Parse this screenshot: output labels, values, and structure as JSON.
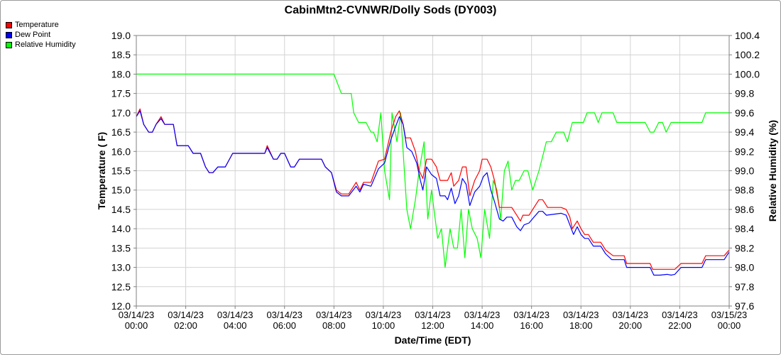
{
  "chart_data": {
    "type": "line",
    "title": "CabinMtn2-CVNWR/Dolly Sods (DY003)",
    "xlabel": "Date/Time (EDT)",
    "ylabel_left": "Temperature ( F)",
    "ylabel_right": "Relative Humidity (%)",
    "x_range_hours": [
      0,
      24
    ],
    "x_ticks": [
      {
        "hour": 0,
        "date": "03/14/23",
        "time": "00:00"
      },
      {
        "hour": 2,
        "date": "03/14/23",
        "time": "02:00"
      },
      {
        "hour": 4,
        "date": "03/14/23",
        "time": "04:00"
      },
      {
        "hour": 6,
        "date": "03/14/23",
        "time": "06:00"
      },
      {
        "hour": 8,
        "date": "03/14/23",
        "time": "08:00"
      },
      {
        "hour": 10,
        "date": "03/14/23",
        "time": "10:00"
      },
      {
        "hour": 12,
        "date": "03/14/23",
        "time": "12:00"
      },
      {
        "hour": 14,
        "date": "03/14/23",
        "time": "14:00"
      },
      {
        "hour": 16,
        "date": "03/14/23",
        "time": "16:00"
      },
      {
        "hour": 18,
        "date": "03/14/23",
        "time": "18:00"
      },
      {
        "hour": 20,
        "date": "03/14/23",
        "time": "20:00"
      },
      {
        "hour": 22,
        "date": "03/14/23",
        "time": "22:00"
      },
      {
        "hour": 24,
        "date": "03/15/23",
        "time": "00:00"
      }
    ],
    "ylim_left": [
      12.0,
      19.0
    ],
    "ylim_right": [
      97.6,
      100.4
    ],
    "y_ticks_left": [
      "12.0",
      "12.5",
      "13.0",
      "13.5",
      "14.0",
      "14.5",
      "15.0",
      "15.5",
      "16.0",
      "16.5",
      "17.0",
      "17.5",
      "18.0",
      "18.5",
      "19.0"
    ],
    "y_ticks_right": [
      "97.6",
      "97.8",
      "98.0",
      "98.2",
      "98.4",
      "98.6",
      "98.8",
      "99.0",
      "99.2",
      "99.4",
      "99.6",
      "99.8",
      "100.0",
      "100.2",
      "100.4"
    ],
    "grid": true,
    "legend_position": "top-left",
    "series": [
      {
        "name": "Temperature",
        "color": "#ff0000",
        "axis": "left",
        "points": [
          [
            0,
            16.9
          ],
          [
            0.15,
            17.1
          ],
          [
            0.3,
            16.7
          ],
          [
            0.5,
            16.5
          ],
          [
            0.65,
            16.5
          ],
          [
            0.8,
            16.7
          ],
          [
            1.0,
            16.9
          ],
          [
            1.15,
            16.7
          ],
          [
            1.5,
            16.7
          ],
          [
            1.65,
            16.15
          ],
          [
            2.1,
            16.15
          ],
          [
            2.3,
            15.95
          ],
          [
            2.6,
            15.95
          ],
          [
            2.8,
            15.6
          ],
          [
            2.95,
            15.45
          ],
          [
            3.1,
            15.45
          ],
          [
            3.3,
            15.6
          ],
          [
            3.6,
            15.6
          ],
          [
            3.9,
            15.95
          ],
          [
            4.6,
            15.95
          ],
          [
            5.2,
            15.95
          ],
          [
            5.3,
            16.15
          ],
          [
            5.55,
            15.8
          ],
          [
            5.7,
            15.8
          ],
          [
            5.85,
            15.95
          ],
          [
            6.0,
            15.95
          ],
          [
            6.25,
            15.6
          ],
          [
            6.4,
            15.6
          ],
          [
            6.6,
            15.8
          ],
          [
            7.5,
            15.8
          ],
          [
            7.65,
            15.6
          ],
          [
            7.9,
            15.45
          ],
          [
            8.1,
            15.0
          ],
          [
            8.3,
            14.9
          ],
          [
            8.6,
            14.9
          ],
          [
            8.9,
            15.2
          ],
          [
            9.05,
            15.0
          ],
          [
            9.2,
            15.2
          ],
          [
            9.5,
            15.2
          ],
          [
            9.8,
            15.75
          ],
          [
            10.05,
            15.8
          ],
          [
            10.3,
            16.5
          ],
          [
            10.5,
            16.9
          ],
          [
            10.65,
            17.05
          ],
          [
            10.8,
            16.7
          ],
          [
            10.9,
            16.35
          ],
          [
            11.1,
            16.35
          ],
          [
            11.3,
            16.0
          ],
          [
            11.45,
            15.5
          ],
          [
            11.6,
            15.3
          ],
          [
            11.75,
            15.8
          ],
          [
            11.95,
            15.8
          ],
          [
            12.15,
            15.6
          ],
          [
            12.3,
            15.25
          ],
          [
            12.6,
            15.25
          ],
          [
            12.75,
            15.45
          ],
          [
            12.85,
            15.1
          ],
          [
            13.05,
            15.25
          ],
          [
            13.2,
            15.6
          ],
          [
            13.35,
            15.6
          ],
          [
            13.5,
            14.85
          ],
          [
            13.7,
            15.25
          ],
          [
            13.9,
            15.5
          ],
          [
            14.0,
            15.8
          ],
          [
            14.2,
            15.8
          ],
          [
            14.35,
            15.6
          ],
          [
            14.5,
            15.25
          ],
          [
            14.7,
            14.55
          ],
          [
            15.2,
            14.55
          ],
          [
            15.4,
            14.35
          ],
          [
            15.55,
            14.2
          ],
          [
            15.65,
            14.35
          ],
          [
            15.9,
            14.35
          ],
          [
            16.1,
            14.55
          ],
          [
            16.3,
            14.75
          ],
          [
            16.45,
            14.75
          ],
          [
            16.65,
            14.55
          ],
          [
            17.2,
            14.55
          ],
          [
            17.4,
            14.5
          ],
          [
            17.55,
            14.3
          ],
          [
            17.65,
            14.0
          ],
          [
            17.85,
            14.2
          ],
          [
            18.0,
            14.0
          ],
          [
            18.15,
            13.85
          ],
          [
            18.3,
            13.85
          ],
          [
            18.5,
            13.65
          ],
          [
            18.8,
            13.65
          ],
          [
            19.0,
            13.45
          ],
          [
            19.3,
            13.3
          ],
          [
            19.75,
            13.3
          ],
          [
            19.85,
            13.1
          ],
          [
            20.6,
            13.1
          ],
          [
            20.8,
            13.1
          ],
          [
            20.9,
            12.95
          ],
          [
            21.8,
            12.95
          ],
          [
            22.05,
            13.1
          ],
          [
            22.9,
            13.1
          ],
          [
            23.05,
            13.3
          ],
          [
            23.8,
            13.3
          ],
          [
            24.0,
            13.45
          ]
        ]
      },
      {
        "name": "Dew Point",
        "color": "#0000ff",
        "axis": "left",
        "points": [
          [
            0,
            16.9
          ],
          [
            0.15,
            17.05
          ],
          [
            0.3,
            16.7
          ],
          [
            0.5,
            16.5
          ],
          [
            0.65,
            16.5
          ],
          [
            0.8,
            16.7
          ],
          [
            1.0,
            16.85
          ],
          [
            1.15,
            16.7
          ],
          [
            1.5,
            16.7
          ],
          [
            1.65,
            16.15
          ],
          [
            2.1,
            16.15
          ],
          [
            2.3,
            15.95
          ],
          [
            2.6,
            15.95
          ],
          [
            2.8,
            15.6
          ],
          [
            2.95,
            15.45
          ],
          [
            3.1,
            15.45
          ],
          [
            3.3,
            15.6
          ],
          [
            3.6,
            15.6
          ],
          [
            3.9,
            15.95
          ],
          [
            4.6,
            15.95
          ],
          [
            5.2,
            15.95
          ],
          [
            5.3,
            16.1
          ],
          [
            5.55,
            15.8
          ],
          [
            5.7,
            15.8
          ],
          [
            5.85,
            15.95
          ],
          [
            6.0,
            15.95
          ],
          [
            6.25,
            15.6
          ],
          [
            6.4,
            15.6
          ],
          [
            6.6,
            15.8
          ],
          [
            7.5,
            15.8
          ],
          [
            7.65,
            15.6
          ],
          [
            7.9,
            15.45
          ],
          [
            8.1,
            14.95
          ],
          [
            8.3,
            14.85
          ],
          [
            8.6,
            14.85
          ],
          [
            8.9,
            15.1
          ],
          [
            9.05,
            14.95
          ],
          [
            9.2,
            15.15
          ],
          [
            9.5,
            15.1
          ],
          [
            9.8,
            15.55
          ],
          [
            10.05,
            15.7
          ],
          [
            10.3,
            16.3
          ],
          [
            10.5,
            16.65
          ],
          [
            10.65,
            16.9
          ],
          [
            10.8,
            16.7
          ],
          [
            10.95,
            16.1
          ],
          [
            11.15,
            16.0
          ],
          [
            11.35,
            15.7
          ],
          [
            11.5,
            15.25
          ],
          [
            11.6,
            15.0
          ],
          [
            11.75,
            15.6
          ],
          [
            11.95,
            15.4
          ],
          [
            12.15,
            15.3
          ],
          [
            12.3,
            14.85
          ],
          [
            12.5,
            14.85
          ],
          [
            12.6,
            14.75
          ],
          [
            12.75,
            15.05
          ],
          [
            12.9,
            14.65
          ],
          [
            13.05,
            14.85
          ],
          [
            13.2,
            15.3
          ],
          [
            13.35,
            15.15
          ],
          [
            13.5,
            14.6
          ],
          [
            13.7,
            14.95
          ],
          [
            13.9,
            15.1
          ],
          [
            14.05,
            15.35
          ],
          [
            14.2,
            15.45
          ],
          [
            14.35,
            15.0
          ],
          [
            14.5,
            14.7
          ],
          [
            14.7,
            14.25
          ],
          [
            14.85,
            14.2
          ],
          [
            15.0,
            14.3
          ],
          [
            15.2,
            14.3
          ],
          [
            15.4,
            14.05
          ],
          [
            15.55,
            13.95
          ],
          [
            15.7,
            14.1
          ],
          [
            15.9,
            14.15
          ],
          [
            16.1,
            14.3
          ],
          [
            16.3,
            14.45
          ],
          [
            16.45,
            14.45
          ],
          [
            16.6,
            14.35
          ],
          [
            17.2,
            14.4
          ],
          [
            17.4,
            14.35
          ],
          [
            17.55,
            14.1
          ],
          [
            17.7,
            13.85
          ],
          [
            17.85,
            14.05
          ],
          [
            18.0,
            13.85
          ],
          [
            18.15,
            13.75
          ],
          [
            18.3,
            13.75
          ],
          [
            18.5,
            13.55
          ],
          [
            18.8,
            13.55
          ],
          [
            19.0,
            13.35
          ],
          [
            19.25,
            13.2
          ],
          [
            19.75,
            13.2
          ],
          [
            19.85,
            13.0
          ],
          [
            20.6,
            13.0
          ],
          [
            20.8,
            13.0
          ],
          [
            20.95,
            12.8
          ],
          [
            21.2,
            12.8
          ],
          [
            21.5,
            12.82
          ],
          [
            21.65,
            12.8
          ],
          [
            21.8,
            12.82
          ],
          [
            22.05,
            13.0
          ],
          [
            22.9,
            13.0
          ],
          [
            23.05,
            13.2
          ],
          [
            23.8,
            13.2
          ],
          [
            24.0,
            13.4
          ]
        ]
      },
      {
        "name": "Relative Humidity",
        "color": "#00ff00",
        "axis": "right",
        "points": [
          [
            0,
            100.0
          ],
          [
            8.0,
            100.0
          ],
          [
            8.3,
            99.8
          ],
          [
            8.7,
            99.8
          ],
          [
            8.8,
            99.6
          ],
          [
            9.0,
            99.5
          ],
          [
            9.3,
            99.5
          ],
          [
            9.5,
            99.4
          ],
          [
            9.6,
            99.4
          ],
          [
            9.75,
            99.3
          ],
          [
            9.9,
            99.6
          ],
          [
            10.05,
            99.0
          ],
          [
            10.25,
            98.7
          ],
          [
            10.35,
            99.6
          ],
          [
            10.55,
            99.3
          ],
          [
            10.7,
            99.6
          ],
          [
            10.8,
            99.2
          ],
          [
            10.95,
            98.6
          ],
          [
            11.1,
            98.4
          ],
          [
            11.3,
            98.7
          ],
          [
            11.45,
            99.0
          ],
          [
            11.65,
            99.3
          ],
          [
            11.8,
            98.5
          ],
          [
            11.95,
            98.8
          ],
          [
            12.05,
            98.6
          ],
          [
            12.2,
            98.3
          ],
          [
            12.35,
            98.4
          ],
          [
            12.5,
            98.0
          ],
          [
            12.7,
            98.4
          ],
          [
            12.85,
            98.2
          ],
          [
            13.0,
            98.2
          ],
          [
            13.15,
            98.6
          ],
          [
            13.3,
            98.1
          ],
          [
            13.45,
            98.6
          ],
          [
            13.6,
            98.4
          ],
          [
            13.8,
            98.3
          ],
          [
            13.95,
            98.1
          ],
          [
            14.1,
            98.6
          ],
          [
            14.3,
            98.3
          ],
          [
            14.45,
            98.9
          ],
          [
            14.6,
            98.8
          ],
          [
            14.75,
            98.5
          ],
          [
            14.9,
            99.0
          ],
          [
            15.05,
            99.1
          ],
          [
            15.2,
            98.8
          ],
          [
            15.35,
            98.9
          ],
          [
            15.5,
            98.9
          ],
          [
            15.7,
            99.0
          ],
          [
            15.85,
            99.0
          ],
          [
            16.05,
            98.8
          ],
          [
            16.3,
            99.0
          ],
          [
            16.5,
            99.2
          ],
          [
            16.6,
            99.3
          ],
          [
            16.8,
            99.3
          ],
          [
            17.0,
            99.4
          ],
          [
            17.3,
            99.4
          ],
          [
            17.45,
            99.3
          ],
          [
            17.65,
            99.5
          ],
          [
            18.1,
            99.5
          ],
          [
            18.25,
            99.6
          ],
          [
            18.55,
            99.6
          ],
          [
            18.7,
            99.5
          ],
          [
            18.85,
            99.6
          ],
          [
            19.3,
            99.6
          ],
          [
            19.45,
            99.5
          ],
          [
            20.6,
            99.5
          ],
          [
            20.8,
            99.4
          ],
          [
            20.95,
            99.4
          ],
          [
            21.15,
            99.5
          ],
          [
            21.3,
            99.5
          ],
          [
            21.45,
            99.4
          ],
          [
            21.65,
            99.5
          ],
          [
            22.9,
            99.5
          ],
          [
            23.05,
            99.6
          ],
          [
            24.0,
            99.6
          ]
        ]
      }
    ]
  }
}
